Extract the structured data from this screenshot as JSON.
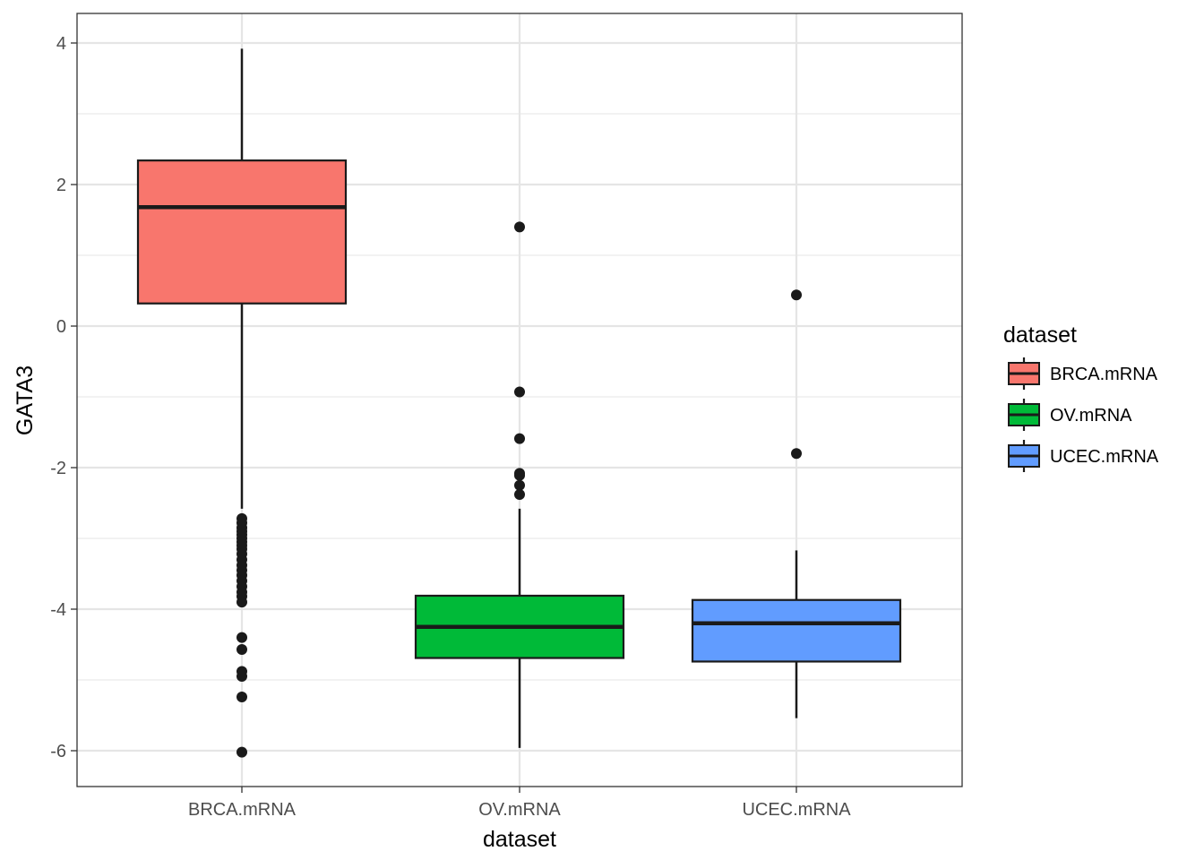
{
  "chart_data": {
    "type": "boxplot",
    "title": "",
    "xlabel": "dataset",
    "ylabel": "GATA3",
    "ylim": [
      -6.5,
      4.25
    ],
    "y_ticks": [
      {
        "value": 4,
        "label": "4"
      },
      {
        "value": 2,
        "label": "2"
      },
      {
        "value": 0,
        "label": "0"
      },
      {
        "value": -2,
        "label": "-2"
      },
      {
        "value": -4,
        "label": "-4"
      },
      {
        "value": -6,
        "label": "-6"
      }
    ],
    "grid": true,
    "legend_title": "dataset",
    "legend_position": "right",
    "categories": [
      "BRCA.mRNA",
      "OV.mRNA",
      "UCEC.mRNA"
    ],
    "series": [
      {
        "name": "BRCA.mRNA",
        "color": "#F8766D",
        "whisker_low": -2.58,
        "q1": 0.32,
        "median": 1.68,
        "q3": 2.34,
        "whisker_high": 3.92,
        "outliers": [
          -2.72,
          -2.78,
          -2.85,
          -2.9,
          -2.95,
          -3.0,
          -3.05,
          -3.1,
          -3.15,
          -3.22,
          -3.3,
          -3.38,
          -3.45,
          -3.52,
          -3.6,
          -3.68,
          -3.76,
          -3.82,
          -3.9,
          -4.4,
          -4.57,
          -4.88,
          -4.95,
          -5.24,
          -6.02
        ]
      },
      {
        "name": "OV.mRNA",
        "color": "#00BA38",
        "whisker_low": -5.96,
        "q1": -4.69,
        "median": -4.25,
        "q3": -3.81,
        "whisker_high": -2.58,
        "outliers": [
          1.4,
          -0.93,
          -1.59,
          -2.08,
          -2.11,
          -2.25,
          -2.38
        ]
      },
      {
        "name": "UCEC.mRNA",
        "color": "#619CFF",
        "whisker_low": -5.54,
        "q1": -4.74,
        "median": -4.2,
        "q3": -3.87,
        "whisker_high": -3.17,
        "outliers": [
          0.44,
          -1.8
        ]
      }
    ]
  }
}
